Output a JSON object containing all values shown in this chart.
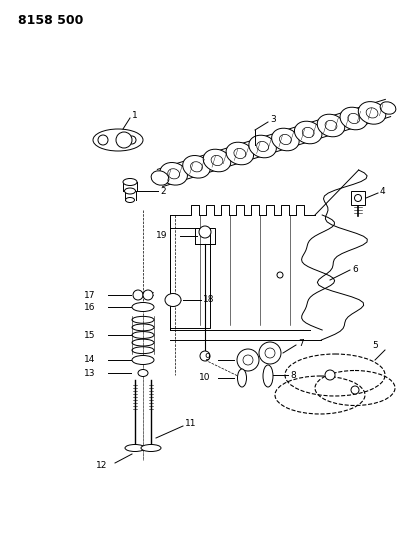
{
  "title": "8158 500",
  "bg_color": "#ffffff",
  "fig_width": 4.11,
  "fig_height": 5.33,
  "dpi": 100
}
